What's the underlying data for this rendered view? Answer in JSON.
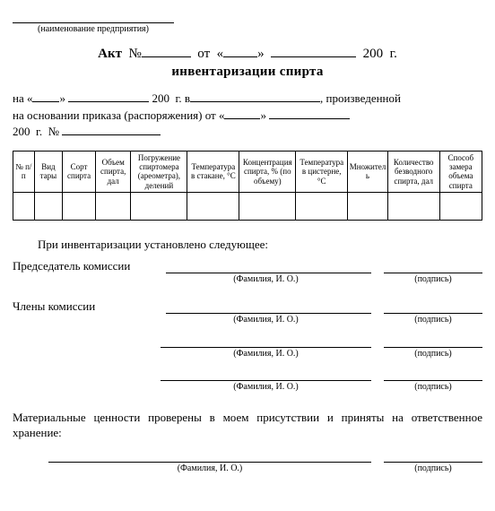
{
  "enterprise_caption": "(наименование предприятия)",
  "title": {
    "word_act": "Акт",
    "no_label": "№",
    "from": "от",
    "open_q": "«",
    "close_q": "»",
    "year_prefix": "200",
    "year_suffix": "г.",
    "subtitle": "инвентаризации спирта"
  },
  "intro": {
    "line1_a": "на «",
    "line1_b": "»",
    "line1_year": "200",
    "line1_g": "г. в",
    "line1_tail": ", произведенной",
    "line2_a": "на основании приказа (распоряжения) от «",
    "line2_b": "»",
    "line3_year": "200",
    "line3_g": "г.",
    "line3_no": "№"
  },
  "columns": [
    "№ п/п",
    "Вид тары",
    "Сорт спирта",
    "Объем спирта, дал",
    "Погружение спиртомера (ареометра), делений",
    "Температура в стакане, °С",
    "Концентрация спирта, % (по объему)",
    "Температура в цистерне, °С",
    "Множитель",
    "Количество безводного спирта, дал",
    "Способ замера объема спирта"
  ],
  "col_widths_pct": [
    4.5,
    6,
    7,
    7.5,
    12,
    11,
    12,
    11,
    8.5,
    11,
    9
  ],
  "findings": "При инвентаризации установлено следующее:",
  "chair_label": "Председатель комиссии",
  "members_label": "Члены комиссии",
  "fio_caption": "(Фамилия, И. О.)",
  "sign_caption": "(подпись)",
  "custody": "Материальные ценности проверены в моем присутствии и приняты на ответственное хранение:"
}
